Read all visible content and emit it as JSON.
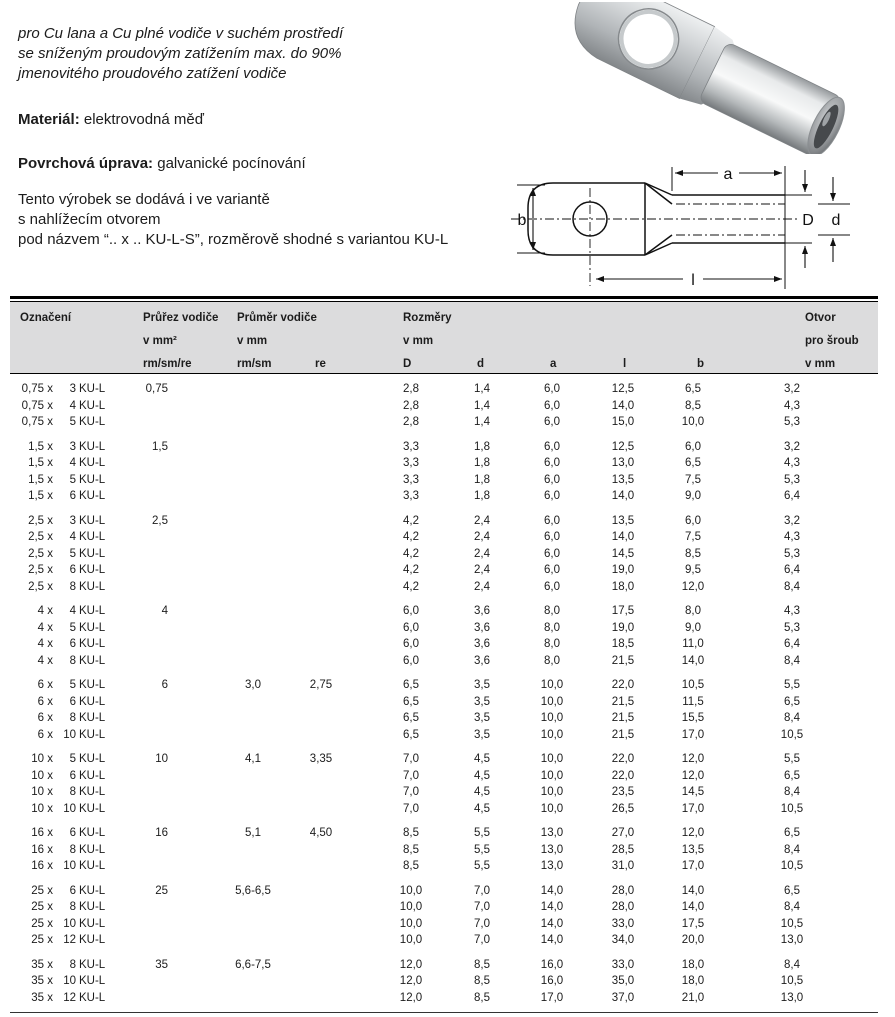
{
  "colors": {
    "header_bg": "#dcdcdd",
    "text": "#1c1c1c"
  },
  "intro": {
    "lines": [
      "pro Cu lana a Cu plné vodiče v suchém prostředí",
      "se sníženým proudovým zatížením max. do 90%",
      "jmenovitého proudového zatížení vodiče"
    ]
  },
  "material": {
    "label": "Materiál:",
    "value": " elektrovodná měď"
  },
  "surface": {
    "label": "Povrchová úprava:",
    "value": " galvanické pocínování"
  },
  "variant": {
    "lines": [
      "Tento výrobek se dodává i ve variantě",
      "s nahlížecím otvorem",
      "pod názvem “.. x .. KU-L-S”, rozměrově shodné s variantou KU-L"
    ]
  },
  "diagram": {
    "labels": {
      "a": "a",
      "b": "b",
      "D": "D",
      "d": "d",
      "l": "l"
    }
  },
  "table": {
    "columns": [
      {
        "key": "oznaceni",
        "lines": [
          "Označení",
          "",
          ""
        ]
      },
      {
        "key": "prurez",
        "lines": [
          "Průřez vodiče",
          "v mm²",
          "rm/sm/re"
        ]
      },
      {
        "key": "prumer",
        "lines": [
          "Průměr vodiče",
          "v mm",
          "rm/sm"
        ]
      },
      {
        "key": "re",
        "lines": [
          "",
          "",
          "re"
        ]
      },
      {
        "key": "D",
        "lines": [
          "Rozměry",
          "v mm",
          "D"
        ]
      },
      {
        "key": "d",
        "lines": [
          "",
          "",
          "d"
        ]
      },
      {
        "key": "a",
        "lines": [
          "",
          "",
          "a"
        ]
      },
      {
        "key": "l",
        "lines": [
          "",
          "",
          "l"
        ]
      },
      {
        "key": "b",
        "lines": [
          "",
          "",
          "b"
        ]
      },
      {
        "key": "otvor",
        "lines": [
          "Otvor",
          "pro šroub",
          "v mm"
        ]
      }
    ],
    "groups": [
      {
        "rows": [
          [
            "0,75 x",
            "3",
            "KU-L",
            "0,75",
            "",
            "",
            "2,8",
            "1,4",
            "6,0",
            "12,5",
            "6,5",
            "3,2"
          ],
          [
            "0,75 x",
            "4",
            "KU-L",
            "",
            "",
            "",
            "2,8",
            "1,4",
            "6,0",
            "14,0",
            "8,5",
            "4,3"
          ],
          [
            "0,75 x",
            "5",
            "KU-L",
            "",
            "",
            "",
            "2,8",
            "1,4",
            "6,0",
            "15,0",
            "10,0",
            "5,3"
          ]
        ]
      },
      {
        "rows": [
          [
            "1,5 x",
            "3",
            "KU-L",
            "1,5",
            "",
            "",
            "3,3",
            "1,8",
            "6,0",
            "12,5",
            "6,0",
            "3,2"
          ],
          [
            "1,5 x",
            "4",
            "KU-L",
            "",
            "",
            "",
            "3,3",
            "1,8",
            "6,0",
            "13,0",
            "6,5",
            "4,3"
          ],
          [
            "1,5 x",
            "5",
            "KU-L",
            "",
            "",
            "",
            "3,3",
            "1,8",
            "6,0",
            "13,5",
            "7,5",
            "5,3"
          ],
          [
            "1,5 x",
            "6",
            "KU-L",
            "",
            "",
            "",
            "3,3",
            "1,8",
            "6,0",
            "14,0",
            "9,0",
            "6,4"
          ]
        ]
      },
      {
        "rows": [
          [
            "2,5 x",
            "3",
            "KU-L",
            "2,5",
            "",
            "",
            "4,2",
            "2,4",
            "6,0",
            "13,5",
            "6,0",
            "3,2"
          ],
          [
            "2,5 x",
            "4",
            "KU-L",
            "",
            "",
            "",
            "4,2",
            "2,4",
            "6,0",
            "14,0",
            "7,5",
            "4,3"
          ],
          [
            "2,5 x",
            "5",
            "KU-L",
            "",
            "",
            "",
            "4,2",
            "2,4",
            "6,0",
            "14,5",
            "8,5",
            "5,3"
          ],
          [
            "2,5 x",
            "6",
            "KU-L",
            "",
            "",
            "",
            "4,2",
            "2,4",
            "6,0",
            "19,0",
            "9,5",
            "6,4"
          ],
          [
            "2,5 x",
            "8",
            "KU-L",
            "",
            "",
            "",
            "4,2",
            "2,4",
            "6,0",
            "18,0",
            "12,0",
            "8,4"
          ]
        ]
      },
      {
        "rows": [
          [
            "4 x",
            "4",
            "KU-L",
            "4",
            "",
            "",
            "6,0",
            "3,6",
            "8,0",
            "17,5",
            "8,0",
            "4,3"
          ],
          [
            "4 x",
            "5",
            "KU-L",
            "",
            "",
            "",
            "6,0",
            "3,6",
            "8,0",
            "19,0",
            "9,0",
            "5,3"
          ],
          [
            "4 x",
            "6",
            "KU-L",
            "",
            "",
            "",
            "6,0",
            "3,6",
            "8,0",
            "18,5",
            "11,0",
            "6,4"
          ],
          [
            "4 x",
            "8",
            "KU-L",
            "",
            "",
            "",
            "6,0",
            "3,6",
            "8,0",
            "21,5",
            "14,0",
            "8,4"
          ]
        ]
      },
      {
        "rows": [
          [
            "6 x",
            "5",
            "KU-L",
            "6",
            "3,0",
            "2,75",
            "6,5",
            "3,5",
            "10,0",
            "22,0",
            "10,5",
            "5,5"
          ],
          [
            "6 x",
            "6",
            "KU-L",
            "",
            "",
            "",
            "6,5",
            "3,5",
            "10,0",
            "21,5",
            "11,5",
            "6,5"
          ],
          [
            "6 x",
            "8",
            "KU-L",
            "",
            "",
            "",
            "6,5",
            "3,5",
            "10,0",
            "21,5",
            "15,5",
            "8,4"
          ],
          [
            "6 x",
            "10",
            "KU-L",
            "",
            "",
            "",
            "6,5",
            "3,5",
            "10,0",
            "21,5",
            "17,0",
            "10,5"
          ]
        ]
      },
      {
        "rows": [
          [
            "10 x",
            "5",
            "KU-L",
            "10",
            "4,1",
            "3,35",
            "7,0",
            "4,5",
            "10,0",
            "22,0",
            "12,0",
            "5,5"
          ],
          [
            "10 x",
            "6",
            "KU-L",
            "",
            "",
            "",
            "7,0",
            "4,5",
            "10,0",
            "22,0",
            "12,0",
            "6,5"
          ],
          [
            "10 x",
            "8",
            "KU-L",
            "",
            "",
            "",
            "7,0",
            "4,5",
            "10,0",
            "23,5",
            "14,5",
            "8,4"
          ],
          [
            "10 x",
            "10",
            "KU-L",
            "",
            "",
            "",
            "7,0",
            "4,5",
            "10,0",
            "26,5",
            "17,0",
            "10,5"
          ]
        ]
      },
      {
        "rows": [
          [
            "16 x",
            "6",
            "KU-L",
            "16",
            "5,1",
            "4,50",
            "8,5",
            "5,5",
            "13,0",
            "27,0",
            "12,0",
            "6,5"
          ],
          [
            "16 x",
            "8",
            "KU-L",
            "",
            "",
            "",
            "8,5",
            "5,5",
            "13,0",
            "28,5",
            "13,5",
            "8,4"
          ],
          [
            "16 x",
            "10",
            "KU-L",
            "",
            "",
            "",
            "8,5",
            "5,5",
            "13,0",
            "31,0",
            "17,0",
            "10,5"
          ]
        ]
      },
      {
        "rows": [
          [
            "25 x",
            "6",
            "KU-L",
            "25",
            "5,6-6,5",
            "",
            "10,0",
            "7,0",
            "14,0",
            "28,0",
            "14,0",
            "6,5"
          ],
          [
            "25 x",
            "8",
            "KU-L",
            "",
            "",
            "",
            "10,0",
            "7,0",
            "14,0",
            "28,0",
            "14,0",
            "8,4"
          ],
          [
            "25 x",
            "10",
            "KU-L",
            "",
            "",
            "",
            "10,0",
            "7,0",
            "14,0",
            "33,0",
            "17,5",
            "10,5"
          ],
          [
            "25 x",
            "12",
            "KU-L",
            "",
            "",
            "",
            "10,0",
            "7,0",
            "14,0",
            "34,0",
            "20,0",
            "13,0"
          ]
        ]
      },
      {
        "rows": [
          [
            "35 x",
            "8",
            "KU-L",
            "35",
            "6,6-7,5",
            "",
            "12,0",
            "8,5",
            "16,0",
            "33,0",
            "18,0",
            "8,4"
          ],
          [
            "35 x",
            "10",
            "KU-L",
            "",
            "",
            "",
            "12,0",
            "8,5",
            "16,0",
            "35,0",
            "18,0",
            "10,5"
          ],
          [
            "35 x",
            "12",
            "KU-L",
            "",
            "",
            "",
            "12,0",
            "8,5",
            "17,0",
            "37,0",
            "21,0",
            "13,0"
          ]
        ]
      }
    ]
  }
}
